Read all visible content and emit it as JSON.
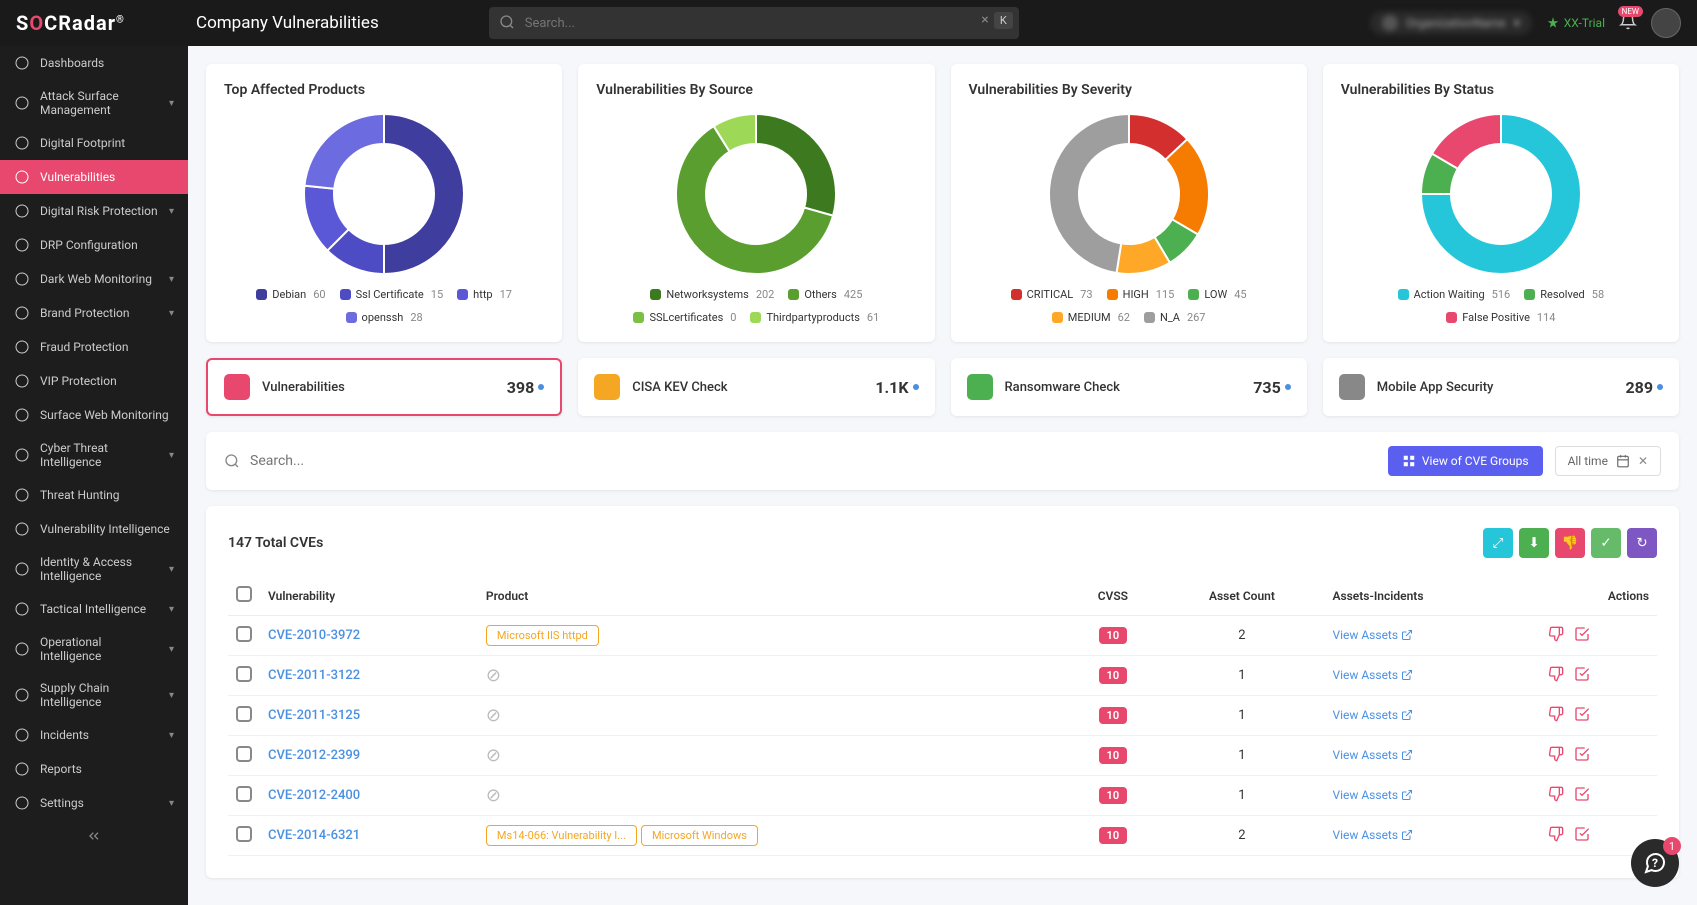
{
  "header": {
    "logo_html": "S<span class='o'>O</span>CRadar<sup style='font-size:10px'>®</sup>",
    "page_title": "Company Vulnerabilities",
    "search_placeholder": "Search...",
    "kbd": "K",
    "trial_label": "XX-Trial",
    "org_name": "OrganizationName",
    "bell_badge": "NEW",
    "chat_badge": "1"
  },
  "sidebar": [
    {
      "label": "Dashboards",
      "icon": "dash",
      "chev": false
    },
    {
      "label": "Attack Surface Management",
      "icon": "asm",
      "chev": true
    },
    {
      "label": "Digital Footprint",
      "icon": "foot",
      "chev": false,
      "indent": true
    },
    {
      "label": "Vulnerabilities",
      "icon": "vuln",
      "chev": false,
      "active": true,
      "indent": true
    },
    {
      "label": "Digital Risk Protection",
      "icon": "drp",
      "chev": true
    },
    {
      "label": "DRP Configuration",
      "icon": "cfg",
      "chev": false,
      "indent": true
    },
    {
      "label": "Dark Web Monitoring",
      "icon": "dark",
      "chev": true,
      "indent": true
    },
    {
      "label": "Brand Protection",
      "icon": "brand",
      "chev": true,
      "indent": true
    },
    {
      "label": "Fraud Protection",
      "icon": "fraud",
      "chev": false,
      "indent": true
    },
    {
      "label": "VIP Protection",
      "icon": "vip",
      "chev": false,
      "indent": true
    },
    {
      "label": "Surface Web Monitoring",
      "icon": "surf",
      "chev": false,
      "indent": true
    },
    {
      "label": "Cyber Threat Intelligence",
      "icon": "cti",
      "chev": true
    },
    {
      "label": "Threat Hunting",
      "icon": "hunt",
      "chev": false,
      "indent": true
    },
    {
      "label": "Vulnerability Intelligence",
      "icon": "vint",
      "chev": false,
      "indent": true
    },
    {
      "label": "Identity & Access Intelligence",
      "icon": "iam",
      "chev": true,
      "indent": true
    },
    {
      "label": "Tactical Intelligence",
      "icon": "tac",
      "chev": true,
      "indent": true
    },
    {
      "label": "Operational Intelligence",
      "icon": "ops",
      "chev": true,
      "indent": true
    },
    {
      "label": "Supply Chain Intelligence",
      "icon": "supply",
      "chev": true
    },
    {
      "label": "Incidents",
      "icon": "inc",
      "chev": true
    },
    {
      "label": "Reports",
      "icon": "rep",
      "chev": false
    },
    {
      "label": "Settings",
      "icon": "set",
      "chev": true
    }
  ],
  "charts": [
    {
      "title": "Top Affected Products",
      "type": "donut",
      "slices": [
        {
          "label": "Debian",
          "value": 60,
          "color": "#3f3d9e"
        },
        {
          "label": "Ssl Certificate",
          "value": 15,
          "color": "#4e4cc4"
        },
        {
          "label": "http",
          "value": 17,
          "color": "#5a58d6"
        },
        {
          "label": "openssh",
          "value": 28,
          "color": "#6d6be0"
        }
      ]
    },
    {
      "title": "Vulnerabilities By Source",
      "type": "donut",
      "slices": [
        {
          "label": "Networksystems",
          "value": 202,
          "color": "#3d7a1f"
        },
        {
          "label": "Others",
          "value": 425,
          "color": "#5a9e2f"
        },
        {
          "label": "SSLcertificates",
          "value": 0,
          "color": "#7bc043"
        },
        {
          "label": "Thirdpartyproducts",
          "value": 61,
          "color": "#9dd957"
        }
      ]
    },
    {
      "title": "Vulnerabilities By Severity",
      "type": "donut",
      "slices": [
        {
          "label": "CRITICAL",
          "value": 73,
          "color": "#d32f2f"
        },
        {
          "label": "HIGH",
          "value": 115,
          "color": "#f57c00"
        },
        {
          "label": "LOW",
          "value": 45,
          "color": "#4caf50"
        },
        {
          "label": "MEDIUM",
          "value": 62,
          "color": "#ffa726"
        },
        {
          "label": "N_A",
          "value": 267,
          "color": "#9e9e9e"
        }
      ]
    },
    {
      "title": "Vulnerabilities By Status",
      "type": "donut",
      "slices": [
        {
          "label": "Action Waiting",
          "value": 516,
          "color": "#26c6da"
        },
        {
          "label": "Resolved",
          "value": 58,
          "color": "#4caf50"
        },
        {
          "label": "False Positive",
          "value": 114,
          "color": "#e8486e"
        }
      ]
    }
  ],
  "donut_style": {
    "size": 160,
    "thickness": 30,
    "bg": "#ffffff"
  },
  "stats": [
    {
      "label": "Vulnerabilities",
      "value": "398",
      "color": "#e8486e",
      "active": true
    },
    {
      "label": "CISA KEV Check",
      "value": "1.1K",
      "color": "#f5a623"
    },
    {
      "label": "Ransomware Check",
      "value": "735",
      "color": "#4caf50"
    },
    {
      "label": "Mobile App Security",
      "value": "289",
      "color": "#888888"
    }
  ],
  "filterbar": {
    "search_placeholder": "Search...",
    "view_btn": "View of CVE Groups",
    "date_label": "All time"
  },
  "table": {
    "title": "147 Total CVEs",
    "action_colors": [
      "#26c6da",
      "#4caf50",
      "#e8486e",
      "#66bb6a",
      "#7e57c2"
    ],
    "columns": [
      "",
      "Vulnerability",
      "Product",
      "CVSS",
      "Asset Count",
      "Assets-Incidents",
      "Actions"
    ],
    "rows": [
      {
        "cve": "CVE-2010-3972",
        "products": [
          "Microsoft IIS httpd"
        ],
        "cvss": "10",
        "assets": "2",
        "link": "View Assets"
      },
      {
        "cve": "CVE-2011-3122",
        "products": [],
        "cvss": "10",
        "assets": "1",
        "link": "View Assets"
      },
      {
        "cve": "CVE-2011-3125",
        "products": [],
        "cvss": "10",
        "assets": "1",
        "link": "View Assets"
      },
      {
        "cve": "CVE-2012-2399",
        "products": [],
        "cvss": "10",
        "assets": "1",
        "link": "View Assets"
      },
      {
        "cve": "CVE-2012-2400",
        "products": [],
        "cvss": "10",
        "assets": "1",
        "link": "View Assets"
      },
      {
        "cve": "CVE-2014-6321",
        "products": [
          "Ms14-066: Vulnerability I...",
          "Microsoft Windows"
        ],
        "cvss": "10",
        "assets": "2",
        "link": "View Assets"
      }
    ]
  }
}
